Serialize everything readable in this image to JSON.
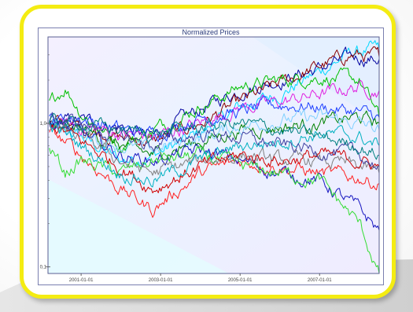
{
  "chart_data": {
    "type": "line",
    "title": "Normalized Prices",
    "xlabel": "",
    "ylabel": "",
    "yscale": "log",
    "ylim": [
      0.09,
      4.0
    ],
    "xlim": [
      "2000-03-01",
      "2008-07-01"
    ],
    "x_ticks": [
      "2001-01-01",
      "2003-01-01",
      "2005-01-01",
      "2007-01-01"
    ],
    "y_ticks": [
      {
        "value": 1,
        "label": "1,0"
      },
      {
        "value": 0.1,
        "label": "0,1"
      }
    ],
    "grid": false,
    "legend": "none",
    "series": [
      {
        "color": "#00d8ff",
        "values": [
          [
            2000.2,
            1.0
          ],
          [
            2001.0,
            0.8
          ],
          [
            2002.0,
            0.55
          ],
          [
            2002.8,
            0.6
          ],
          [
            2004.0,
            0.85
          ],
          [
            2005.0,
            1.3
          ],
          [
            2006.0,
            1.6
          ],
          [
            2007.0,
            2.3
          ],
          [
            2007.8,
            3.1
          ],
          [
            2008.5,
            3.3
          ]
        ]
      },
      {
        "color": "#0000a0",
        "values": [
          [
            2000.2,
            1.0
          ],
          [
            2001.0,
            1.05
          ],
          [
            2002.0,
            0.95
          ],
          [
            2002.8,
            0.8
          ],
          [
            2004.0,
            1.25
          ],
          [
            2005.0,
            1.7
          ],
          [
            2006.0,
            2.0
          ],
          [
            2007.0,
            2.4
          ],
          [
            2007.8,
            2.9
          ],
          [
            2008.5,
            2.8
          ]
        ]
      },
      {
        "color": "#8b0000",
        "values": [
          [
            2000.2,
            1.0
          ],
          [
            2001.0,
            0.95
          ],
          [
            2002.0,
            0.8
          ],
          [
            2002.8,
            0.75
          ],
          [
            2004.0,
            1.0
          ],
          [
            2005.0,
            1.4
          ],
          [
            2006.0,
            1.9
          ],
          [
            2007.0,
            2.5
          ],
          [
            2007.8,
            3.0
          ],
          [
            2008.5,
            2.9
          ]
        ]
      },
      {
        "color": "#00c000",
        "values": [
          [
            2000.2,
            1.4
          ],
          [
            2000.6,
            1.8
          ],
          [
            2001.0,
            1.2
          ],
          [
            2002.0,
            0.7
          ],
          [
            2002.8,
            0.9
          ],
          [
            2004.0,
            1.3
          ],
          [
            2005.0,
            1.8
          ],
          [
            2006.0,
            2.0
          ],
          [
            2007.0,
            2.1
          ],
          [
            2008.0,
            2.0
          ],
          [
            2008.5,
            1.1
          ]
        ]
      },
      {
        "color": "#e020e0",
        "values": [
          [
            2000.2,
            1.0
          ],
          [
            2001.0,
            0.95
          ],
          [
            2002.0,
            0.85
          ],
          [
            2002.8,
            0.8
          ],
          [
            2004.0,
            1.0
          ],
          [
            2005.0,
            1.3
          ],
          [
            2006.0,
            1.4
          ],
          [
            2007.0,
            1.6
          ],
          [
            2008.0,
            1.8
          ],
          [
            2008.5,
            1.7
          ]
        ]
      },
      {
        "color": "#1e40ff",
        "values": [
          [
            2000.2,
            1.05
          ],
          [
            2001.0,
            1.1
          ],
          [
            2002.0,
            0.9
          ],
          [
            2002.8,
            0.85
          ],
          [
            2004.0,
            1.1
          ],
          [
            2005.0,
            1.2
          ],
          [
            2006.0,
            1.35
          ],
          [
            2007.0,
            1.3
          ],
          [
            2008.0,
            1.2
          ],
          [
            2008.5,
            1.1
          ]
        ]
      },
      {
        "color": "#008000",
        "values": [
          [
            2000.2,
            0.95
          ],
          [
            2001.0,
            0.9
          ],
          [
            2002.0,
            0.7
          ],
          [
            2002.8,
            0.6
          ],
          [
            2004.0,
            0.75
          ],
          [
            2005.0,
            0.9
          ],
          [
            2006.0,
            0.95
          ],
          [
            2007.0,
            1.0
          ],
          [
            2008.0,
            1.1
          ],
          [
            2008.5,
            1.0
          ]
        ]
      },
      {
        "color": "#7fd0ff",
        "values": [
          [
            2000.2,
            1.0
          ],
          [
            2001.0,
            0.9
          ],
          [
            2002.0,
            0.7
          ],
          [
            2002.8,
            0.65
          ],
          [
            2004.0,
            0.8
          ],
          [
            2005.0,
            0.95
          ],
          [
            2006.0,
            1.05
          ],
          [
            2007.0,
            1.1
          ],
          [
            2008.0,
            1.0
          ],
          [
            2008.5,
            0.9
          ]
        ]
      },
      {
        "color": "#ff2020",
        "values": [
          [
            2000.2,
            0.9
          ],
          [
            2001.0,
            0.6
          ],
          [
            2002.0,
            0.35
          ],
          [
            2002.8,
            0.25
          ],
          [
            2004.0,
            0.45
          ],
          [
            2005.0,
            0.55
          ],
          [
            2006.0,
            0.5
          ],
          [
            2007.0,
            0.45
          ],
          [
            2008.0,
            0.42
          ],
          [
            2008.5,
            0.38
          ]
        ]
      },
      {
        "color": "#1515c0",
        "values": [
          [
            2000.2,
            1.0
          ],
          [
            2001.0,
            0.85
          ],
          [
            2002.0,
            0.6
          ],
          [
            2002.8,
            0.55
          ],
          [
            2004.0,
            0.65
          ],
          [
            2005.0,
            0.55
          ],
          [
            2006.0,
            0.45
          ],
          [
            2007.0,
            0.4
          ],
          [
            2008.0,
            0.25
          ],
          [
            2008.5,
            0.18
          ]
        ]
      },
      {
        "color": "#33dd33",
        "values": [
          [
            2000.2,
            0.7
          ],
          [
            2000.6,
            0.45
          ],
          [
            2001.0,
            0.55
          ],
          [
            2002.0,
            0.45
          ],
          [
            2002.8,
            0.55
          ],
          [
            2004.0,
            0.6
          ],
          [
            2005.0,
            0.5
          ],
          [
            2006.0,
            0.45
          ],
          [
            2007.0,
            0.4
          ],
          [
            2008.0,
            0.2
          ],
          [
            2008.5,
            0.09
          ]
        ]
      },
      {
        "color": "#808080",
        "values": [
          [
            2000.2,
            0.95
          ],
          [
            2001.0,
            0.8
          ],
          [
            2002.0,
            0.55
          ],
          [
            2002.8,
            0.45
          ],
          [
            2004.0,
            0.55
          ],
          [
            2005.0,
            0.6
          ],
          [
            2006.0,
            0.55
          ],
          [
            2007.0,
            0.55
          ],
          [
            2008.0,
            0.5
          ],
          [
            2008.5,
            0.45
          ]
        ]
      },
      {
        "color": "#d00000",
        "values": [
          [
            2000.2,
            1.0
          ],
          [
            2001.0,
            0.75
          ],
          [
            2002.0,
            0.5
          ],
          [
            2002.8,
            0.35
          ],
          [
            2004.0,
            0.5
          ],
          [
            2005.0,
            0.6
          ],
          [
            2006.0,
            0.55
          ],
          [
            2007.0,
            0.6
          ],
          [
            2008.0,
            0.55
          ],
          [
            2008.5,
            0.5
          ]
        ]
      },
      {
        "color": "#00b0c0",
        "values": [
          [
            2000.2,
            1.0
          ],
          [
            2001.0,
            0.7
          ],
          [
            2002.0,
            0.45
          ],
          [
            2002.8,
            0.4
          ],
          [
            2004.0,
            0.55
          ],
          [
            2005.0,
            0.7
          ],
          [
            2006.0,
            0.75
          ],
          [
            2007.0,
            0.85
          ],
          [
            2008.0,
            0.8
          ],
          [
            2008.5,
            0.7
          ]
        ]
      },
      {
        "color": "#4040a0",
        "values": [
          [
            2000.2,
            1.1
          ],
          [
            2001.0,
            1.0
          ],
          [
            2002.0,
            0.8
          ],
          [
            2002.8,
            0.7
          ],
          [
            2004.0,
            0.85
          ],
          [
            2005.0,
            0.8
          ],
          [
            2006.0,
            0.7
          ],
          [
            2007.0,
            0.65
          ],
          [
            2008.0,
            0.6
          ],
          [
            2008.5,
            0.5
          ]
        ]
      },
      {
        "color": "#008080",
        "values": [
          [
            2000.2,
            1.0
          ],
          [
            2001.0,
            1.0
          ],
          [
            2002.0,
            0.9
          ],
          [
            2002.8,
            0.85
          ],
          [
            2004.0,
            0.95
          ],
          [
            2005.0,
            1.0
          ],
          [
            2006.0,
            0.9
          ],
          [
            2007.0,
            0.8
          ],
          [
            2008.0,
            0.7
          ],
          [
            2008.5,
            0.6
          ]
        ]
      }
    ]
  }
}
